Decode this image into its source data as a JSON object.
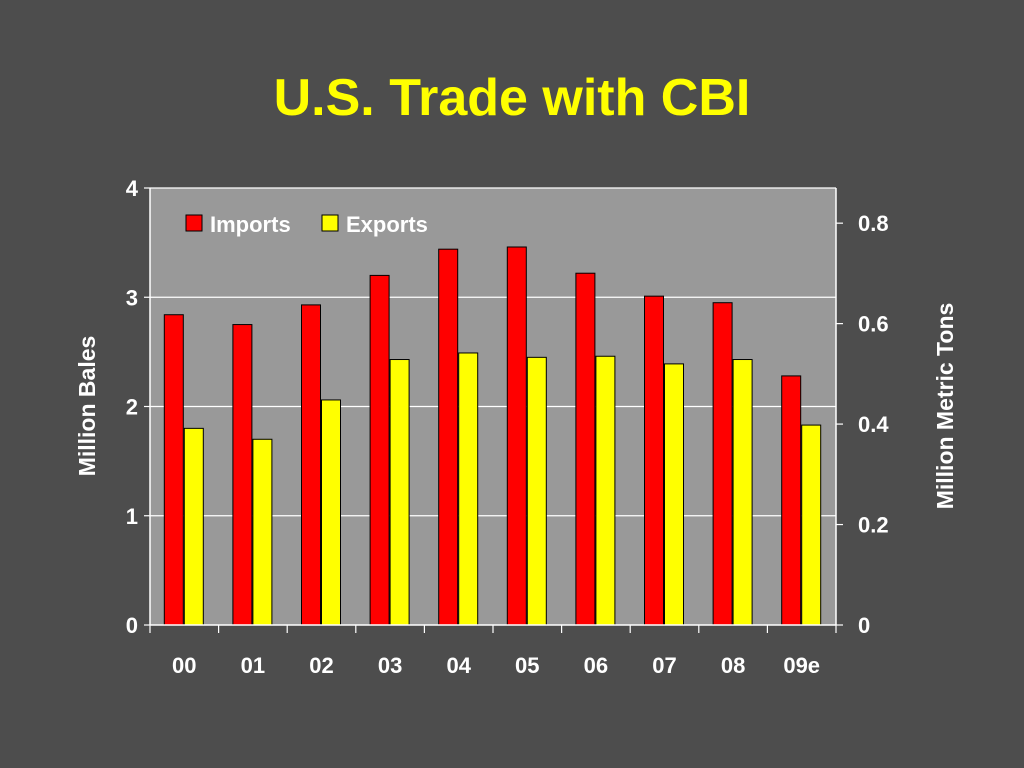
{
  "slide": {
    "title": "U.S. Trade with CBI"
  },
  "chart_data": {
    "type": "bar",
    "categories": [
      "00",
      "01",
      "02",
      "03",
      "04",
      "05",
      "06",
      "07",
      "08",
      "09e"
    ],
    "series": [
      {
        "name": "Imports",
        "color": "#ff0000",
        "values": [
          2.84,
          2.75,
          2.93,
          3.2,
          3.44,
          3.46,
          3.22,
          3.01,
          2.95,
          2.28
        ]
      },
      {
        "name": "Exports",
        "color": "#ffff00",
        "values": [
          1.8,
          1.7,
          2.06,
          2.43,
          2.49,
          2.45,
          2.46,
          2.39,
          2.43,
          1.83
        ]
      }
    ],
    "ylabel": "Million Bales",
    "ylim": [
      0,
      4
    ],
    "yticks": [
      "0",
      "1",
      "2",
      "3",
      "4"
    ],
    "y2label": "Million Metric Tons",
    "y2lim": [
      0,
      0.87
    ],
    "y2ticks": [
      "0",
      "0.2",
      "0.4",
      "0.6",
      "0.8"
    ],
    "grid": true,
    "legend_position": "top-left",
    "plot_background": "#999999"
  }
}
